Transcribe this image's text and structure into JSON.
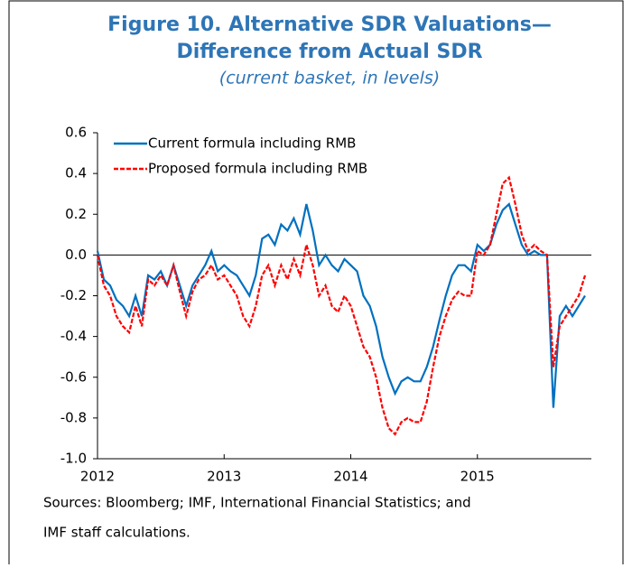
{
  "chart_data": {
    "type": "line",
    "title": "Figure 10. Alternative SDR Valuations—",
    "title_line2": "Difference from Actual SDR",
    "subtitle": "(current basket, in levels)",
    "note": "Sources: Bloomberg; IMF, International Financial Statistics; and",
    "note_line2": "IMF staff calculations.",
    "x": [
      2012.0,
      2012.05,
      2012.1,
      2012.15,
      2012.2,
      2012.25,
      2012.3,
      2012.35,
      2012.4,
      2012.45,
      2012.5,
      2012.55,
      2012.6,
      2012.65,
      2012.7,
      2012.75,
      2012.8,
      2012.85,
      2012.9,
      2012.95,
      2013.0,
      2013.05,
      2013.1,
      2013.15,
      2013.2,
      2013.25,
      2013.3,
      2013.35,
      2013.4,
      2013.45,
      2013.5,
      2013.55,
      2013.6,
      2013.65,
      2013.7,
      2013.75,
      2013.8,
      2013.85,
      2013.9,
      2013.95,
      2014.0,
      2014.05,
      2014.1,
      2014.15,
      2014.2,
      2014.25,
      2014.3,
      2014.35,
      2014.4,
      2014.45,
      2014.5,
      2014.55,
      2014.6,
      2014.65,
      2014.7,
      2014.75,
      2014.8,
      2014.85,
      2014.9,
      2014.95,
      2015.0,
      2015.05,
      2015.1,
      2015.15,
      2015.2,
      2015.25,
      2015.3,
      2015.35,
      2015.4,
      2015.45,
      2015.5,
      2015.55,
      2015.6,
      2015.65,
      2015.7,
      2015.75,
      2015.8,
      2015.85
    ],
    "series": [
      {
        "name": "Current formula including RMB",
        "color": "#0070c0",
        "dash": false,
        "values": [
          0.02,
          -0.12,
          -0.15,
          -0.22,
          -0.25,
          -0.3,
          -0.2,
          -0.3,
          -0.1,
          -0.12,
          -0.08,
          -0.15,
          -0.05,
          -0.15,
          -0.25,
          -0.15,
          -0.1,
          -0.05,
          0.02,
          -0.08,
          -0.05,
          -0.08,
          -0.1,
          -0.15,
          -0.2,
          -0.1,
          0.08,
          0.1,
          0.05,
          0.15,
          0.12,
          0.18,
          0.1,
          0.25,
          0.12,
          -0.05,
          0.0,
          -0.05,
          -0.08,
          -0.02,
          -0.05,
          -0.08,
          -0.2,
          -0.25,
          -0.35,
          -0.5,
          -0.6,
          -0.68,
          -0.62,
          -0.6,
          -0.62,
          -0.62,
          -0.55,
          -0.45,
          -0.32,
          -0.2,
          -0.1,
          -0.05,
          -0.05,
          -0.08,
          0.05,
          0.02,
          0.05,
          0.15,
          0.22,
          0.25,
          0.15,
          0.05,
          0.0,
          0.02,
          0.0,
          0.0,
          -0.75,
          -0.3,
          -0.25,
          -0.3,
          -0.25,
          -0.2
        ]
      },
      {
        "name": "Proposed formula including RMB",
        "color": "#ff0000",
        "dash": true,
        "values": [
          0.0,
          -0.15,
          -0.2,
          -0.3,
          -0.35,
          -0.38,
          -0.25,
          -0.35,
          -0.12,
          -0.15,
          -0.1,
          -0.15,
          -0.05,
          -0.18,
          -0.3,
          -0.18,
          -0.12,
          -0.1,
          -0.05,
          -0.12,
          -0.1,
          -0.15,
          -0.2,
          -0.3,
          -0.35,
          -0.25,
          -0.1,
          -0.05,
          -0.15,
          -0.05,
          -0.12,
          -0.02,
          -0.1,
          0.05,
          -0.05,
          -0.2,
          -0.15,
          -0.25,
          -0.28,
          -0.2,
          -0.25,
          -0.35,
          -0.45,
          -0.5,
          -0.6,
          -0.75,
          -0.85,
          -0.88,
          -0.82,
          -0.8,
          -0.82,
          -0.82,
          -0.72,
          -0.55,
          -0.4,
          -0.3,
          -0.22,
          -0.18,
          -0.2,
          -0.2,
          0.02,
          0.0,
          0.05,
          0.2,
          0.35,
          0.38,
          0.25,
          0.1,
          0.02,
          0.05,
          0.02,
          0.0,
          -0.55,
          -0.35,
          -0.3,
          -0.25,
          -0.2,
          -0.1
        ]
      }
    ],
    "xlim": [
      2012,
      2015.9
    ],
    "xticks": [
      2012,
      2013,
      2014,
      2015
    ],
    "ylim": [
      -1.0,
      0.6
    ],
    "yticks": [
      0.6,
      0.4,
      0.2,
      {
        "value": 0,
        "label": "0.0"
      },
      -0.2,
      -0.4,
      -0.6,
      -0.8,
      {
        "value": -1.0,
        "label": "-1.0"
      }
    ],
    "legend": "upper left"
  }
}
